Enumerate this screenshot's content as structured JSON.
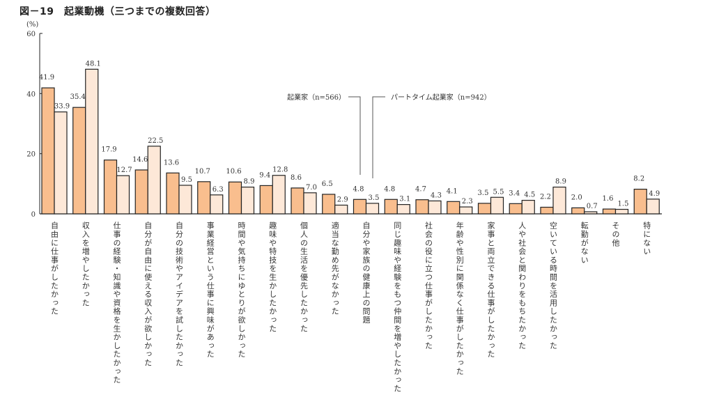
{
  "chart_data": {
    "type": "bar",
    "title": "図－19　起業動機（三つまでの複数回答）",
    "ylabel": "(%)",
    "xlabel": "",
    "ylim": [
      0,
      60
    ],
    "yticks": [
      0,
      20,
      40,
      60
    ],
    "grid": false,
    "categories": [
      "自由に仕事がしたかった",
      "収入を増やしたかった",
      "仕事の経験・知識や資格を生かしたかった",
      "自分が自由に使える収入が欲しかった",
      "自分の技術やアイデアを試したかった",
      "事業経営という仕事に興味があった",
      "時間や気持ちにゆとりが欲しかった",
      "趣味や特技を生かしたかった",
      "個人の生活を優先したかった",
      "適当な勤め先がなかった",
      "自分や家族の健康上の問題",
      "同じ趣味や経験をもつ仲間を増やしたかった",
      "社会の役に立つ仕事がしたかった",
      "年齢や性別に関係なく仕事がしたかった",
      "家事と両立できる仕事がしたかった",
      "人や社会と関わりをもちたかった",
      "空いている時間を活用したかった",
      "転勤がない",
      "その他",
      "特にない"
    ],
    "series": [
      {
        "name": "起業家（n=566）",
        "color": "#F9BE8E",
        "values": [
          41.9,
          35.4,
          17.9,
          14.6,
          13.6,
          10.7,
          10.6,
          9.4,
          8.6,
          6.5,
          4.8,
          4.8,
          4.7,
          4.1,
          3.5,
          3.4,
          2.2,
          2.0,
          1.6,
          8.2
        ]
      },
      {
        "name": "パートタイム起業家（n=942）",
        "color": "#FDE8D8",
        "values": [
          33.9,
          48.1,
          12.7,
          22.5,
          9.5,
          6.3,
          8.9,
          12.8,
          7.0,
          2.9,
          3.5,
          3.1,
          4.3,
          2.3,
          5.5,
          4.5,
          8.9,
          0.7,
          1.5,
          4.9
        ]
      }
    ],
    "legend": "inline-annotation"
  }
}
